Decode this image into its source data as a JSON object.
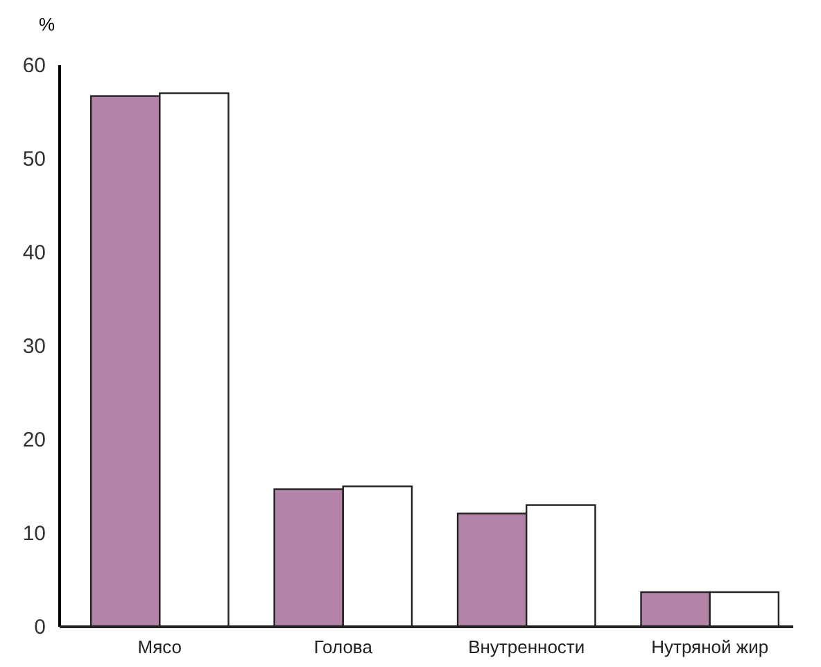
{
  "chart_data": {
    "type": "bar",
    "ylabel": "%",
    "categories": [
      "Мясо",
      "Голова",
      "Внутренности",
      "Нутряной жир"
    ],
    "series": [
      {
        "color": "#b384a8",
        "values": [
          56.7,
          14.7,
          12.1,
          3.7
        ]
      },
      {
        "color": "#ffffff",
        "values": [
          57,
          15,
          13,
          3.7
        ]
      }
    ],
    "ylim": [
      0,
      60
    ],
    "yticks": [
      0,
      10,
      20,
      30,
      40,
      50,
      60
    ]
  }
}
